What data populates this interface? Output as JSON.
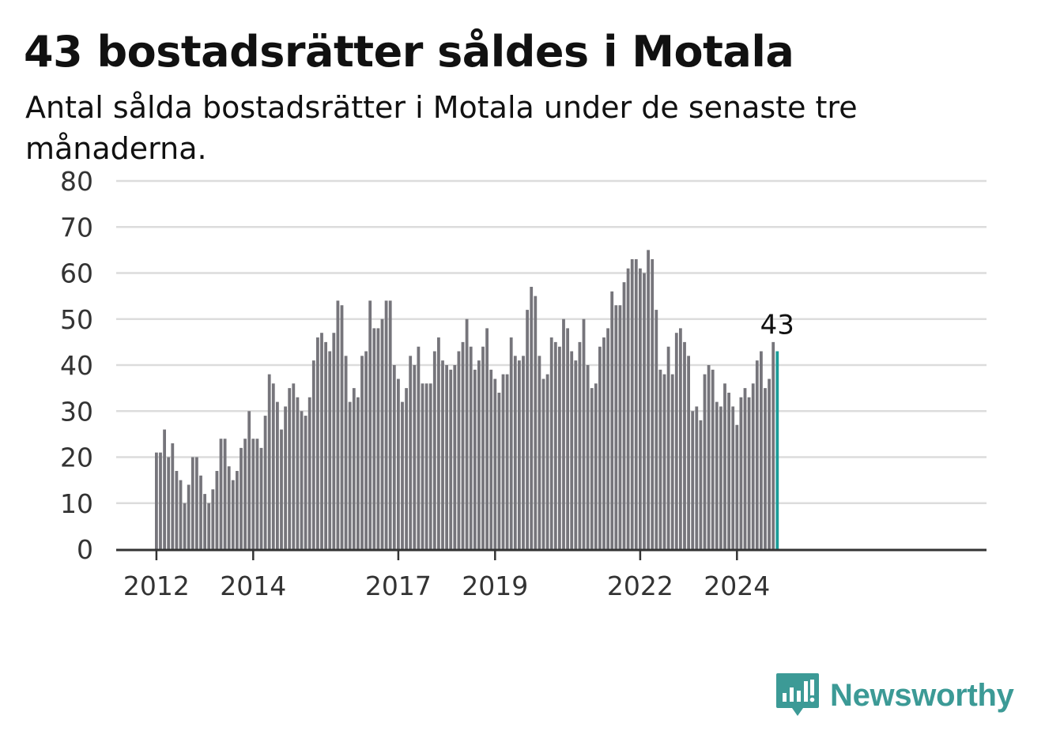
{
  "title": "43 bostadsrätter såldes i Motala",
  "subtitle": "Antal sålda bostadsrätter i Motala under de senaste tre månaderna.",
  "brand": {
    "name": "Newsworthy"
  },
  "colors": {
    "bar": "#76757b",
    "highlight": "#1a9c98",
    "grid": "#dcdcdc",
    "axis": "#333333",
    "text": "#111111",
    "brand": "#3c9a96"
  },
  "chart_data": {
    "type": "bar",
    "start": "2012-01",
    "frequency": "monthly",
    "ylim": [
      0,
      80
    ],
    "yticks": [
      0,
      10,
      20,
      30,
      40,
      50,
      60,
      70,
      80
    ],
    "xticks": [
      "2012",
      "2014",
      "2017",
      "2019",
      "2022",
      "2024"
    ],
    "grid": true,
    "highlight_label": "43",
    "values": [
      21,
      21,
      26,
      20,
      23,
      17,
      15,
      10,
      14,
      20,
      20,
      16,
      12,
      10,
      13,
      17,
      24,
      24,
      18,
      15,
      17,
      22,
      24,
      30,
      24,
      24,
      22,
      29,
      38,
      36,
      32,
      26,
      31,
      35,
      36,
      33,
      30,
      29,
      33,
      41,
      46,
      47,
      45,
      43,
      47,
      54,
      53,
      42,
      32,
      35,
      33,
      42,
      43,
      54,
      48,
      48,
      50,
      54,
      54,
      40,
      37,
      32,
      35,
      42,
      40,
      44,
      36,
      36,
      36,
      43,
      46,
      41,
      40,
      39,
      40,
      43,
      45,
      50,
      44,
      39,
      41,
      44,
      48,
      39,
      37,
      34,
      38,
      38,
      46,
      42,
      41,
      42,
      52,
      57,
      55,
      42,
      37,
      38,
      46,
      45,
      44,
      50,
      48,
      43,
      41,
      45,
      50,
      40,
      35,
      36,
      44,
      46,
      48,
      56,
      53,
      53,
      58,
      61,
      63,
      63,
      61,
      60,
      65,
      63,
      52,
      39,
      38,
      44,
      38,
      47,
      48,
      45,
      42,
      30,
      31,
      28,
      38,
      40,
      39,
      32,
      31,
      36,
      34,
      31,
      27,
      33,
      35,
      33,
      36,
      41,
      43,
      35,
      37,
      45,
      43
    ]
  }
}
